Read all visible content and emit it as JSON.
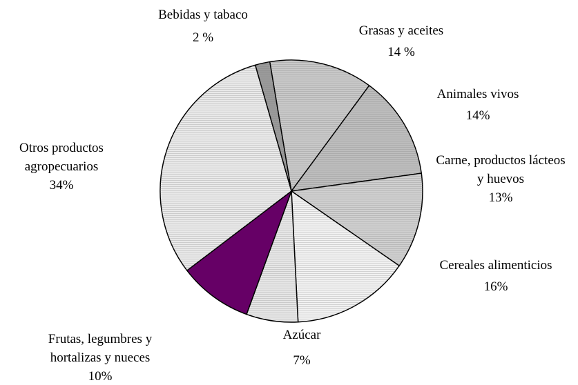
{
  "chart_data": {
    "type": "pie",
    "categories": [
      "Bebidas y tabaco",
      "Grasas y aceites",
      "Animales vivos",
      "Carne, productos lácteos y huevos",
      "Cereales alimenticios",
      "Azúcar",
      "Frutas, legumbres y hortalizas y nueces",
      "Otros productos agropecuarios"
    ],
    "values": [
      2,
      14,
      14,
      13,
      16,
      7,
      10,
      34
    ],
    "value_labels": [
      "2 %",
      "14 %",
      "14%",
      "13%",
      "16%",
      "7%",
      "10%",
      "34%"
    ],
    "colors": [
      "#9a9a9a",
      "#c8c8c8",
      "#bdbdbd",
      "#cfcfcf",
      "#f1f1f1",
      "#e6e6e6",
      "#660066",
      "#e9e9e9"
    ]
  }
}
